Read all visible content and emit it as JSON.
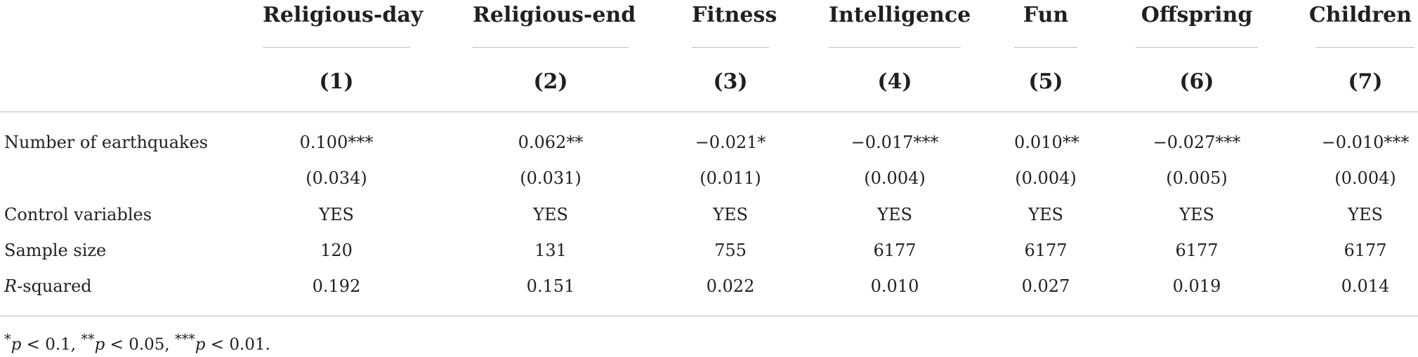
{
  "columns": [
    {
      "title": "Religious-day",
      "number": "(1)"
    },
    {
      "title": "Religious-end",
      "number": "(2)"
    },
    {
      "title": "Fitness",
      "number": "(3)"
    },
    {
      "title": "Intelligence",
      "number": "(4)"
    },
    {
      "title": "Fun",
      "number": "(5)"
    },
    {
      "title": "Offspring",
      "number": "(6)"
    },
    {
      "title": "Children",
      "number": "(7)"
    }
  ],
  "rows": {
    "earthquakes": {
      "label": "Number of earthquakes",
      "values": [
        "0.100***",
        "0.062**",
        "−0.021*",
        "−0.017***",
        "0.010**",
        "−0.027***",
        "−0.010***"
      ]
    },
    "std_errors": {
      "label": "",
      "values": [
        "(0.034)",
        "(0.031)",
        "(0.011)",
        "(0.004)",
        "(0.004)",
        "(0.005)",
        "(0.004)"
      ]
    },
    "controls": {
      "label": "Control variables",
      "values": [
        "YES",
        "YES",
        "YES",
        "YES",
        "YES",
        "YES",
        "YES"
      ]
    },
    "sample_size": {
      "label": "Sample size",
      "values": [
        "120",
        "131",
        "755",
        "6177",
        "6177",
        "6177",
        "6177"
      ]
    },
    "r_squared": {
      "label_italic": "R",
      "label_rest": "-squared",
      "values": [
        "0.192",
        "0.151",
        "0.022",
        "0.010",
        "0.027",
        "0.019",
        "0.014"
      ]
    }
  },
  "note": {
    "p1_sym": "*",
    "p1_var": "p",
    "p1_rest": " < 0.1, ",
    "p2_sym": "**",
    "p2_var": "p",
    "p2_rest": " < 0.05, ",
    "p3_sym": "***",
    "p3_var": "p",
    "p3_rest": " < 0.01."
  }
}
